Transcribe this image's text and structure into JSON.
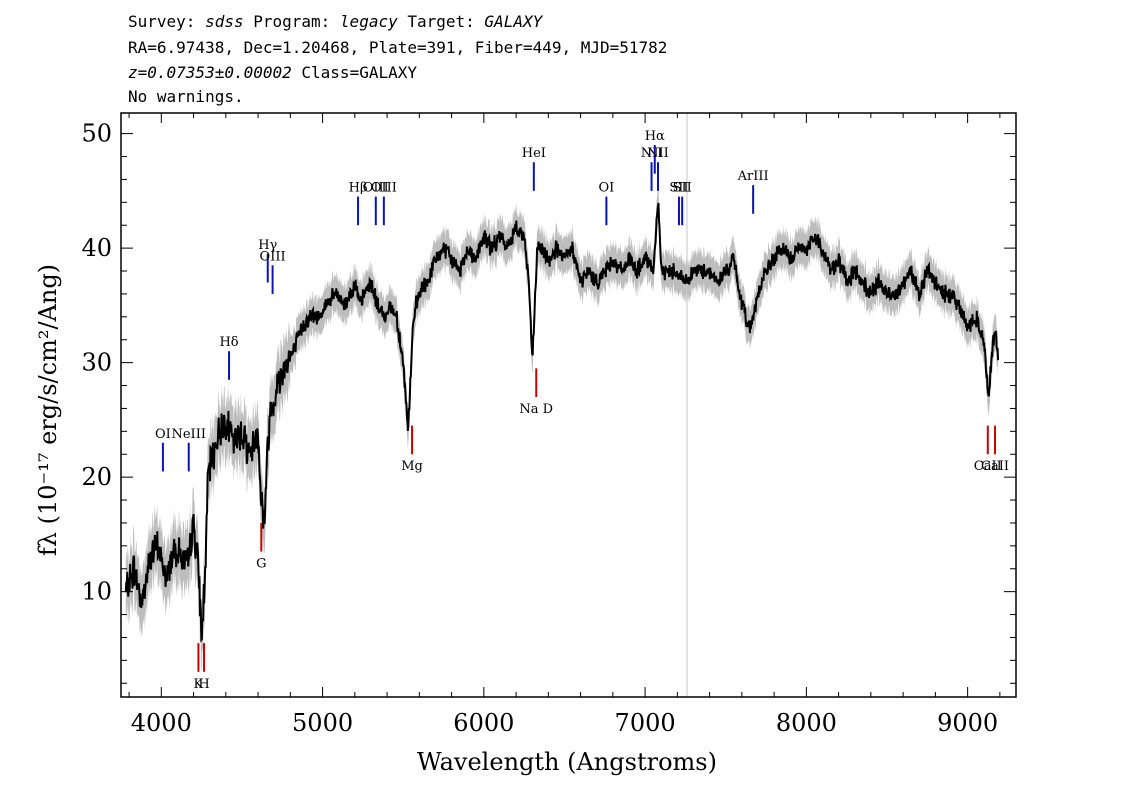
{
  "header": {
    "line1": {
      "survey_label": "Survey: ",
      "survey": "sdss",
      "program_label": " Program: ",
      "program": "legacy",
      "target_label": " Target: ",
      "target": "GALAXY"
    },
    "line2": "RA=6.97438, Dec=1.20468, Plate=391, Fiber=449, MJD=51782",
    "line3": {
      "z": "z=0.07353±0.00002",
      "class": " Class=GALAXY"
    },
    "line4": "No warnings."
  },
  "chart_data": {
    "type": "line",
    "xlabel": "Wavelength (Angstroms)",
    "ylabel": "fλ (10⁻¹⁷ erg/s/cm²/Ang)",
    "xlim": [
      3750,
      9300
    ],
    "ylim": [
      0.8,
      51.8
    ],
    "x_ticks": [
      4000,
      5000,
      6000,
      7000,
      8000,
      9000
    ],
    "y_ticks": [
      10,
      20,
      30,
      40,
      50
    ],
    "vertical_marker_x": 7260,
    "colors": {
      "spectrum": "#000000",
      "error_band": "#bdbdbd",
      "emission": "#0a14b4",
      "absorption": "#c80000",
      "marker": "#c8c8c8"
    },
    "spectrum": {
      "x": [
        3780,
        3830,
        3880,
        3930,
        3980,
        4030,
        4080,
        4130,
        4160,
        4200,
        4230,
        4250,
        4270,
        4290,
        4320,
        4360,
        4400,
        4450,
        4500,
        4550,
        4600,
        4620,
        4640,
        4660,
        4680,
        4720,
        4770,
        4820,
        4870,
        4920,
        4970,
        5020,
        5080,
        5140,
        5200,
        5230,
        5260,
        5300,
        5340,
        5380,
        5420,
        5460,
        5500,
        5530,
        5560,
        5580,
        5600,
        5650,
        5700,
        5750,
        5800,
        5850,
        5900,
        5950,
        6000,
        6050,
        6100,
        6150,
        6200,
        6250,
        6280,
        6300,
        6320,
        6330,
        6350,
        6400,
        6450,
        6500,
        6550,
        6600,
        6650,
        6700,
        6750,
        6800,
        6850,
        6900,
        6950,
        7000,
        7050,
        7080,
        7100,
        7150,
        7200,
        7250,
        7300,
        7350,
        7400,
        7450,
        7500,
        7550,
        7600,
        7650,
        7700,
        7750,
        7800,
        7850,
        7900,
        7950,
        8000,
        8050,
        8100,
        8150,
        8200,
        8250,
        8300,
        8350,
        8400,
        8450,
        8500,
        8550,
        8600,
        8650,
        8700,
        8750,
        8800,
        8850,
        8900,
        8950,
        9000,
        9050,
        9100,
        9130,
        9150,
        9170,
        9190
      ],
      "y": [
        10,
        12,
        9,
        13,
        14,
        11,
        14,
        13,
        12,
        16,
        12,
        6,
        11,
        20,
        22,
        24,
        25,
        23,
        24,
        22,
        24,
        18,
        16,
        23,
        26,
        28,
        30,
        31,
        33,
        34,
        34,
        35,
        36,
        35,
        37,
        35,
        36,
        37,
        35,
        34,
        35,
        34,
        30,
        24,
        33,
        35,
        36,
        37,
        39,
        40,
        39,
        38,
        40,
        39,
        41,
        40,
        41,
        40,
        42,
        41,
        37,
        30,
        36,
        40,
        40,
        39,
        40,
        39,
        40,
        37,
        38,
        37,
        38,
        39,
        38,
        39,
        38,
        39,
        38,
        44,
        38,
        38,
        38,
        37,
        38,
        38,
        38,
        37,
        38,
        39,
        35,
        33,
        36,
        38,
        39,
        40,
        39,
        40,
        40,
        41,
        40,
        38,
        39,
        37,
        38,
        37,
        36,
        37,
        36,
        36,
        37,
        38,
        36,
        38,
        37,
        36,
        36,
        35,
        33,
        34,
        32,
        27,
        31,
        33,
        30
      ],
      "seed": 7
    },
    "emission_lines": [
      {
        "label": "OI",
        "x": 4010,
        "y0": 20.5,
        "y1": 23.0
      },
      {
        "label": "NeIII",
        "x": 4170,
        "y0": 20.5,
        "y1": 23.0
      },
      {
        "label": "Hδ",
        "x": 4420,
        "y0": 28.5,
        "y1": 31.0
      },
      {
        "label": "Hγ",
        "x": 4660,
        "y0": 37.0,
        "y1": 39.5
      },
      {
        "label": "OIII",
        "x": 4690,
        "y0": 36.0,
        "y1": 38.5
      },
      {
        "label": "Hβ",
        "x": 5220,
        "y0": 42.0,
        "y1": 44.5
      },
      {
        "label": "OIII",
        "x": 5330,
        "y0": 42.0,
        "y1": 44.5
      },
      {
        "label": "OIII",
        "x": 5380,
        "y0": 42.0,
        "y1": 44.5
      },
      {
        "label": "HeI",
        "x": 6310,
        "y0": 45.0,
        "y1": 47.5
      },
      {
        "label": "OI",
        "x": 6760,
        "y0": 42.0,
        "y1": 44.5
      },
      {
        "label": "NII",
        "x": 7040,
        "y0": 45.0,
        "y1": 47.5
      },
      {
        "label": "Hα",
        "x": 7060,
        "y0": 46.5,
        "y1": 49.0
      },
      {
        "label": "NII",
        "x": 7080,
        "y0": 45.0,
        "y1": 47.5
      },
      {
        "label": "SII",
        "x": 7210,
        "y0": 42.0,
        "y1": 44.5
      },
      {
        "label": "SII",
        "x": 7230,
        "y0": 42.0,
        "y1": 44.5
      },
      {
        "label": "ArIII",
        "x": 7670,
        "y0": 43.0,
        "y1": 45.5
      }
    ],
    "absorption_lines": [
      {
        "label": "K",
        "x": 4230,
        "y0": 3.0,
        "y1": 5.5
      },
      {
        "label": "H",
        "x": 4265,
        "y0": 3.0,
        "y1": 5.5
      },
      {
        "label": "G",
        "x": 4620,
        "y0": 13.5,
        "y1": 16.0
      },
      {
        "label": "Mg",
        "x": 5555,
        "y0": 22.0,
        "y1": 24.5
      },
      {
        "label": "Na D",
        "x": 6325,
        "y0": 27.0,
        "y1": 29.5
      },
      {
        "label": "CaII",
        "x": 9125,
        "y0": 22.0,
        "y1": 24.5
      },
      {
        "label": "CaII",
        "x": 9170,
        "y0": 22.0,
        "y1": 24.5
      }
    ]
  }
}
